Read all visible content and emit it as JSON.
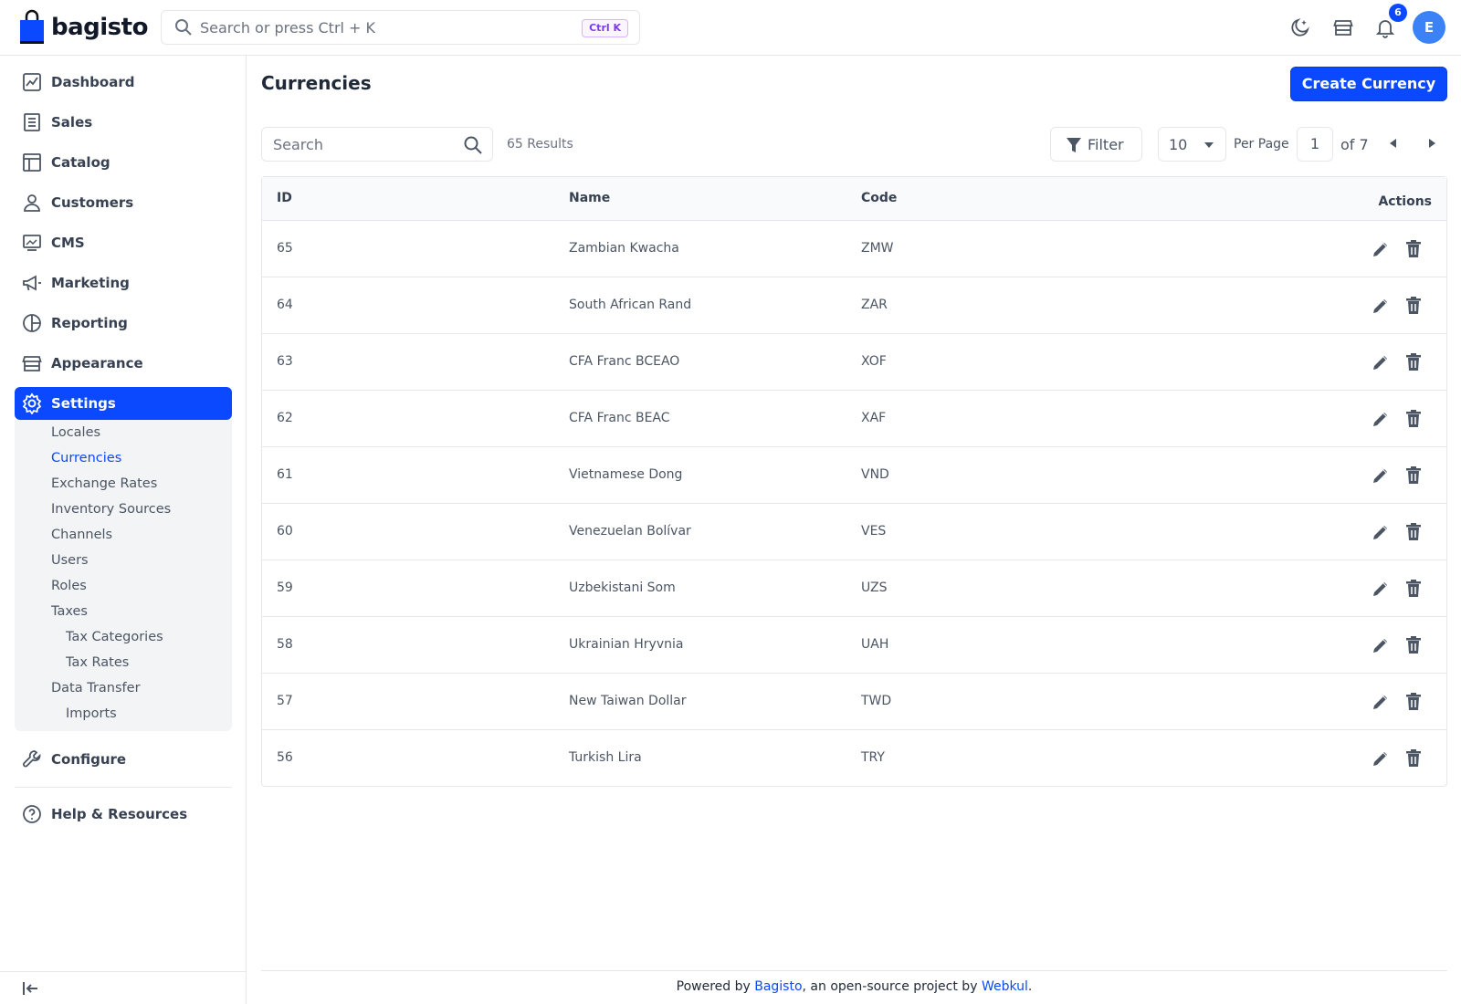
{
  "app": {
    "brand": "bagisto"
  },
  "header": {
    "search_placeholder": "Search or press Ctrl + K",
    "shortcut": "Ctrl K",
    "notification_count": "6",
    "avatar_initial": "E"
  },
  "sidebar": {
    "items": [
      {
        "label": "Dashboard",
        "icon": "dashboard-icon"
      },
      {
        "label": "Sales",
        "icon": "sales-icon"
      },
      {
        "label": "Catalog",
        "icon": "catalog-icon"
      },
      {
        "label": "Customers",
        "icon": "customers-icon"
      },
      {
        "label": "CMS",
        "icon": "cms-icon"
      },
      {
        "label": "Marketing",
        "icon": "megaphone-icon"
      },
      {
        "label": "Reporting",
        "icon": "pie-chart-icon"
      },
      {
        "label": "Appearance",
        "icon": "store-icon"
      },
      {
        "label": "Settings",
        "icon": "gear-icon"
      }
    ],
    "settings_sub": [
      "Locales",
      "Currencies",
      "Exchange Rates",
      "Inventory Sources",
      "Channels",
      "Users",
      "Roles",
      "Taxes",
      "Tax Categories",
      "Tax Rates",
      "Data Transfer",
      "Imports"
    ],
    "configure": "Configure",
    "help": "Help & Resources"
  },
  "main": {
    "title": "Currencies",
    "create_button": "Create Currency",
    "search_placeholder": "Search",
    "results": "65 Results",
    "filter": "Filter",
    "per_page_value": "10",
    "per_page_label": "Per Page",
    "page": "1",
    "of_pages": "of 7",
    "columns": [
      "ID",
      "Name",
      "Code",
      "Actions"
    ],
    "rows": [
      {
        "id": "65",
        "name": "Zambian Kwacha",
        "code": "ZMW"
      },
      {
        "id": "64",
        "name": "South African Rand",
        "code": "ZAR"
      },
      {
        "id": "63",
        "name": "CFA Franc BCEAO",
        "code": "XOF"
      },
      {
        "id": "62",
        "name": "CFA Franc BEAC",
        "code": "XAF"
      },
      {
        "id": "61",
        "name": "Vietnamese Dong",
        "code": "VND"
      },
      {
        "id": "60",
        "name": "Venezuelan Bolívar",
        "code": "VES"
      },
      {
        "id": "59",
        "name": "Uzbekistani Som",
        "code": "UZS"
      },
      {
        "id": "58",
        "name": "Ukrainian Hryvnia",
        "code": "UAH"
      },
      {
        "id": "57",
        "name": "New Taiwan Dollar",
        "code": "TWD"
      },
      {
        "id": "56",
        "name": "Turkish Lira",
        "code": "TRY"
      }
    ]
  },
  "footer": {
    "prefix": "Powered by ",
    "link1": "Bagisto",
    "middle": ", an open-source project by ",
    "link2": "Webkul",
    "suffix": "."
  },
  "colors": {
    "primary": "#0a49ff",
    "border": "#e5e7eb",
    "submenu_bg": "#f3f4f6"
  }
}
